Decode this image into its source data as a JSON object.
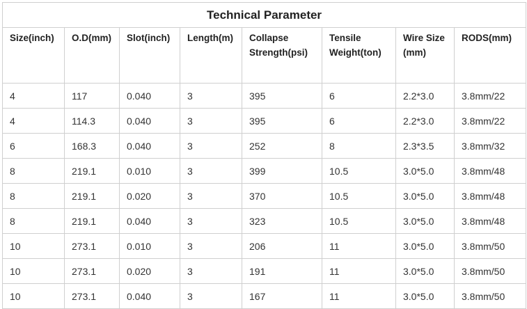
{
  "title": "Technical Parameter",
  "headers": [
    "Size(inch)",
    "O.D(mm)",
    "Slot(inch)",
    "Length(m)",
    "Collapse Strength(psi)",
    "Tensile Weight(ton)",
    "Wire Size (mm)",
    "RODS(mm)"
  ],
  "rows": [
    [
      "4",
      "117",
      "0.040",
      "3",
      "395",
      "6",
      "2.2*3.0",
      "3.8mm/22"
    ],
    [
      "4",
      "114.3",
      "0.040",
      "3",
      "395",
      "6",
      "2.2*3.0",
      "3.8mm/22"
    ],
    [
      "6",
      "168.3",
      "0.040",
      "3",
      "252",
      "8",
      "2.3*3.5",
      "3.8mm/32"
    ],
    [
      "8",
      "219.1",
      "0.010",
      "3",
      "399",
      "10.5",
      "3.0*5.0",
      "3.8mm/48"
    ],
    [
      "8",
      "219.1",
      "0.020",
      "3",
      "370",
      "10.5",
      "3.0*5.0",
      "3.8mm/48"
    ],
    [
      "8",
      "219.1",
      "0.040",
      "3",
      "323",
      "10.5",
      "3.0*5.0",
      "3.8mm/48"
    ],
    [
      "10",
      "273.1",
      "0.010",
      "3",
      "206",
      "11",
      "3.0*5.0",
      "3.8mm/50"
    ],
    [
      "10",
      "273.1",
      "0.020",
      "3",
      "191",
      "11",
      "3.0*5.0",
      "3.8mm/50"
    ],
    [
      "10",
      "273.1",
      "0.040",
      "3",
      "167",
      "11",
      "3.0*5.0",
      "3.8mm/50"
    ]
  ]
}
